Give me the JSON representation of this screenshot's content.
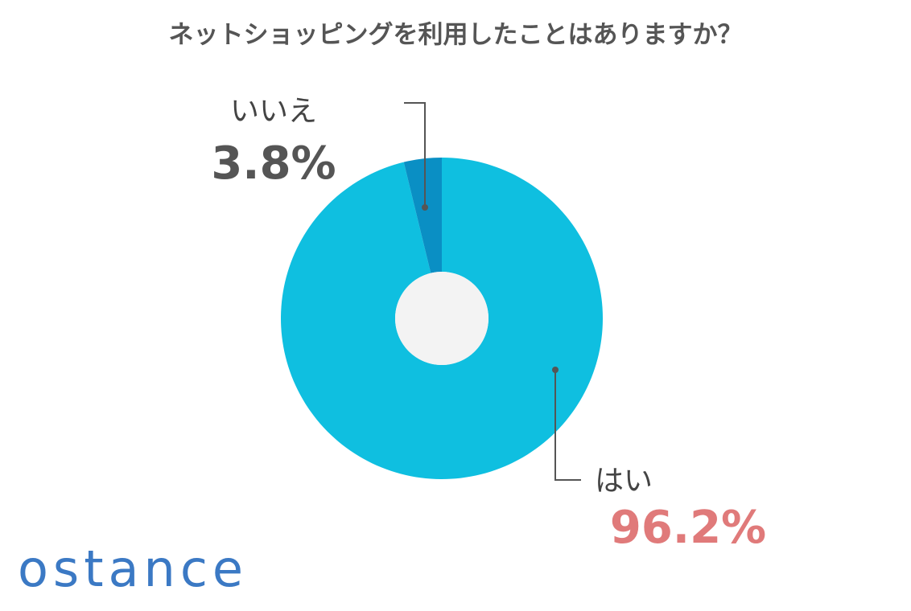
{
  "chart_data": {
    "type": "pie",
    "title": "ネットショッピングを利用したことはありますか？",
    "categories": [
      "はい",
      "いいえ"
    ],
    "values": [
      96.2,
      3.8
    ],
    "value_labels": [
      "96.2%",
      "3.8%"
    ],
    "colors": [
      "#0fbfe0",
      "#0a8fc4"
    ]
  },
  "brand": "ostance"
}
